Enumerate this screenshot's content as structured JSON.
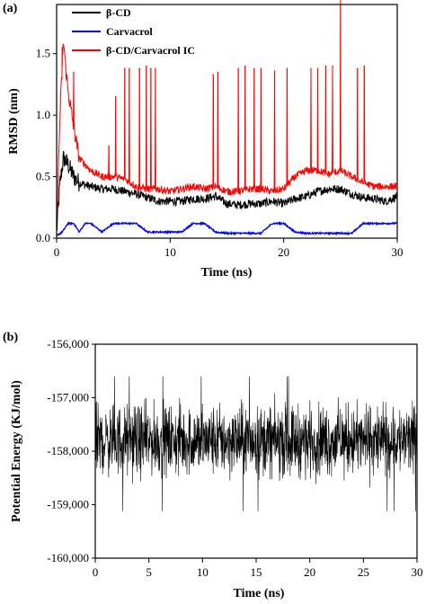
{
  "chart_data": [
    {
      "panel_label": "(a)",
      "type": "line",
      "xlabel": "Time (ns)",
      "ylabel": "RMSD (nm)",
      "xlim": [
        0,
        30
      ],
      "ylim": [
        0,
        1.9
      ],
      "xticks": [
        0,
        10,
        20,
        30
      ],
      "yticks": [
        0.0,
        0.5,
        1.0,
        1.5
      ],
      "ytick_labels": [
        "0.0",
        "0.5",
        "1.0",
        "1.5"
      ],
      "legend_position": "top-center",
      "series": [
        {
          "name": "β-CD",
          "color": "#000000",
          "x": [
            0,
            0.3,
            0.6,
            1,
            1.5,
            2,
            3,
            4,
            5,
            6,
            7,
            8,
            9,
            10,
            11,
            12,
            13,
            14,
            15,
            16,
            17,
            18,
            19,
            20,
            21,
            22,
            23,
            24,
            25,
            26,
            27,
            28,
            29,
            30
          ],
          "values": [
            0.05,
            0.45,
            0.65,
            0.6,
            0.5,
            0.45,
            0.42,
            0.4,
            0.4,
            0.38,
            0.36,
            0.33,
            0.3,
            0.3,
            0.3,
            0.32,
            0.32,
            0.34,
            0.28,
            0.27,
            0.28,
            0.28,
            0.3,
            0.28,
            0.32,
            0.34,
            0.38,
            0.4,
            0.4,
            0.36,
            0.33,
            0.32,
            0.3,
            0.34
          ]
        },
        {
          "name": "Carvacrol",
          "color": "#0000ff",
          "x": [
            0,
            0.5,
            1,
            1.5,
            2,
            2.5,
            3,
            4,
            5,
            5.5,
            6,
            7,
            8,
            9,
            10,
            11,
            12,
            13,
            14,
            15,
            16,
            17,
            18,
            19,
            20,
            21,
            22,
            23,
            24,
            25,
            26,
            27,
            28,
            29,
            30
          ],
          "values": [
            0.02,
            0.05,
            0.12,
            0.12,
            0.05,
            0.12,
            0.12,
            0.05,
            0.12,
            0.12,
            0.12,
            0.12,
            0.05,
            0.05,
            0.05,
            0.05,
            0.12,
            0.12,
            0.05,
            0.04,
            0.04,
            0.04,
            0.04,
            0.12,
            0.12,
            0.05,
            0.04,
            0.04,
            0.04,
            0.04,
            0.04,
            0.12,
            0.12,
            0.12,
            0.12
          ]
        },
        {
          "name": "β-CD/Carvacrol IC",
          "color": "#ff0000",
          "x": [
            0,
            0.3,
            0.6,
            1,
            1.5,
            2,
            3,
            4,
            5,
            6,
            7,
            8,
            9,
            10,
            11,
            12,
            13,
            14,
            15,
            16,
            17,
            18,
            19,
            20,
            21,
            22,
            23,
            24,
            25,
            26,
            27,
            28,
            29,
            30
          ],
          "values": [
            0.1,
            1.0,
            1.6,
            1.2,
            0.9,
            0.65,
            0.55,
            0.5,
            0.5,
            0.48,
            0.42,
            0.4,
            0.4,
            0.38,
            0.4,
            0.42,
            0.4,
            0.42,
            0.38,
            0.38,
            0.4,
            0.4,
            0.38,
            0.4,
            0.5,
            0.55,
            0.55,
            0.52,
            0.55,
            0.5,
            0.45,
            0.42,
            0.42,
            0.42
          ],
          "spike_x": [
            0.5,
            0.8,
            1.5,
            4.6,
            5.2,
            6.0,
            6.4,
            7.3,
            7.9,
            8.3,
            8.7,
            13.8,
            14.2,
            16.0,
            16.6,
            17.4,
            18.0,
            19.2,
            20.3,
            22.4,
            23.0,
            23.7,
            24.3,
            25.0,
            26.5,
            27.1
          ],
          "spike_y": [
            1.55,
            1.4,
            1.35,
            0.75,
            1.15,
            1.38,
            1.38,
            1.38,
            1.4,
            1.38,
            1.38,
            1.33,
            1.35,
            1.38,
            1.4,
            1.38,
            1.38,
            1.36,
            1.38,
            1.38,
            1.38,
            1.4,
            1.4,
            1.95,
            1.38,
            1.4
          ]
        }
      ]
    },
    {
      "panel_label": "(b)",
      "type": "line",
      "xlabel": "Time (ns)",
      "ylabel": "Potential Energy (KJ/mol)",
      "xlim": [
        0,
        30
      ],
      "ylim": [
        -160000,
        -156000
      ],
      "xticks": [
        0,
        5,
        10,
        15,
        20,
        25,
        30
      ],
      "yticks": [
        -156000,
        -157000,
        -158000,
        -159000,
        -160000
      ],
      "ytick_labels": [
        "-156,000",
        "-157,000",
        "-158,000",
        "-159,000",
        "-160,000"
      ],
      "series": [
        {
          "color": "#000000",
          "mean": -157800,
          "band_low": -158400,
          "band_high": -157200,
          "min": -159250,
          "max": -156600
        }
      ]
    }
  ]
}
